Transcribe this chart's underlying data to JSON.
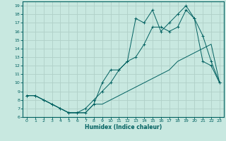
{
  "xlabel": "Humidex (Indice chaleur)",
  "bg_color": "#c8e8e0",
  "grid_color": "#b0d0c8",
  "line_color": "#006060",
  "xlim": [
    -0.5,
    23.5
  ],
  "ylim": [
    6,
    19.5
  ],
  "xticks": [
    0,
    1,
    2,
    3,
    4,
    5,
    6,
    7,
    8,
    9,
    10,
    11,
    12,
    13,
    14,
    15,
    16,
    17,
    18,
    19,
    20,
    21,
    22,
    23
  ],
  "yticks": [
    6,
    7,
    8,
    9,
    10,
    11,
    12,
    13,
    14,
    15,
    16,
    17,
    18,
    19
  ],
  "curve1_x": [
    0,
    1,
    2,
    3,
    4,
    5,
    6,
    7,
    8,
    9,
    10,
    11,
    12,
    13,
    14,
    15,
    16,
    17,
    18,
    19,
    20,
    21,
    22,
    23
  ],
  "curve1_y": [
    8.5,
    8.5,
    8.0,
    7.5,
    7.0,
    6.5,
    6.5,
    7.0,
    8.0,
    9.0,
    10.0,
    11.5,
    12.5,
    13.0,
    14.5,
    16.5,
    16.5,
    16.0,
    16.5,
    18.5,
    17.5,
    15.5,
    12.5,
    10.0
  ],
  "curve2_x": [
    0,
    1,
    2,
    3,
    4,
    5,
    6,
    7,
    8,
    9,
    10,
    11,
    12,
    13,
    14,
    15,
    16,
    17,
    18,
    19,
    20,
    21,
    22,
    23
  ],
  "curve2_y": [
    8.5,
    8.5,
    8.0,
    7.5,
    7.0,
    6.5,
    6.5,
    6.5,
    7.5,
    10.0,
    11.5,
    11.5,
    12.5,
    17.5,
    17.0,
    18.5,
    16.0,
    17.0,
    18.0,
    19.0,
    17.5,
    12.5,
    12.0,
    10.0
  ],
  "curve3_x": [
    0,
    1,
    2,
    3,
    4,
    5,
    6,
    7,
    8,
    9,
    10,
    11,
    12,
    13,
    14,
    15,
    16,
    17,
    18,
    19,
    20,
    21,
    22,
    23
  ],
  "curve3_y": [
    8.5,
    8.5,
    8.0,
    7.5,
    7.0,
    6.5,
    6.5,
    6.5,
    7.5,
    7.5,
    8.0,
    8.5,
    9.0,
    9.5,
    10.0,
    10.5,
    11.0,
    11.5,
    12.5,
    13.0,
    13.5,
    14.0,
    14.5,
    10.0
  ]
}
